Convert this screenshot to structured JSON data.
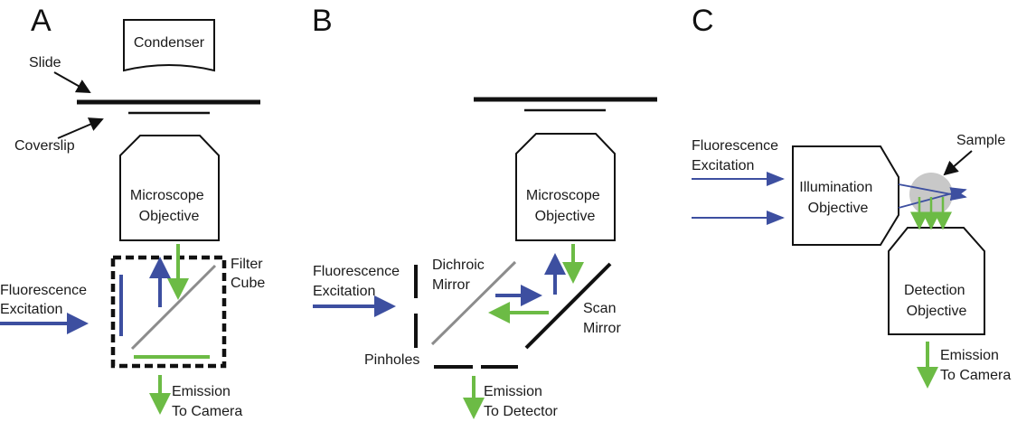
{
  "colors": {
    "excitation": "#3d4fa0",
    "emission": "#6cbb45",
    "dichroic": "#8c8c8c",
    "line": "#111111",
    "sample": "#c8c8c8"
  },
  "panel_a": {
    "letter": "A",
    "condenser": "Condenser",
    "slide": "Slide",
    "coverslip": "Coverslip",
    "objective": [
      "Microscope",
      "Objective"
    ],
    "filter_cube": [
      "Filter",
      "Cube"
    ],
    "excitation": [
      "Fluorescence",
      "Excitation"
    ],
    "emission": [
      "Emission",
      "To Camera"
    ]
  },
  "panel_b": {
    "letter": "B",
    "objective": [
      "Microscope",
      "Objective"
    ],
    "dichroic": [
      "Dichroic",
      "Mirror"
    ],
    "scan_mirror": [
      "Scan",
      "Mirror"
    ],
    "excitation": [
      "Fluorescence",
      "Excitation"
    ],
    "pinholes": "Pinholes",
    "emission": [
      "Emission",
      "To Detector"
    ]
  },
  "panel_c": {
    "letter": "C",
    "excitation": [
      "Fluorescence",
      "Excitation"
    ],
    "sample": "Sample",
    "illumination": [
      "Illumination",
      "Objective"
    ],
    "detection": [
      "Detection",
      "Objective"
    ],
    "emission": [
      "Emission",
      "To Camera"
    ]
  }
}
